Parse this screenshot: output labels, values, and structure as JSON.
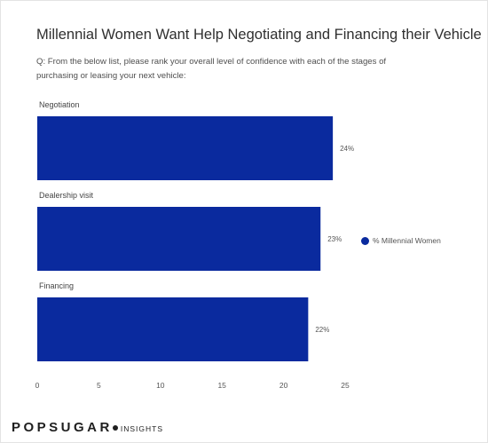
{
  "brand": {
    "name": "POPSUGAR",
    "sub": "INSIGHTS"
  },
  "chart_data": {
    "type": "bar",
    "orientation": "horizontal",
    "title": "Millennial Women Want Help Negotiating and Financing their Vehicle",
    "subtitle": "Q: From the below list, please rank your overall level of confidence with each of the stages of purchasing or leasing your next vehicle:",
    "categories": [
      "Negotiation",
      "Dealership visit",
      "Financing"
    ],
    "series": [
      {
        "name": "% Millennial Women",
        "values": [
          24,
          23,
          22
        ],
        "labels": [
          "24%",
          "23%",
          "22%"
        ],
        "color": "#0a2a9e"
      }
    ],
    "xlim": [
      0,
      25
    ],
    "xticks": [
      0,
      5,
      10,
      15,
      20,
      25
    ],
    "grid": false,
    "legend_position": "right"
  }
}
